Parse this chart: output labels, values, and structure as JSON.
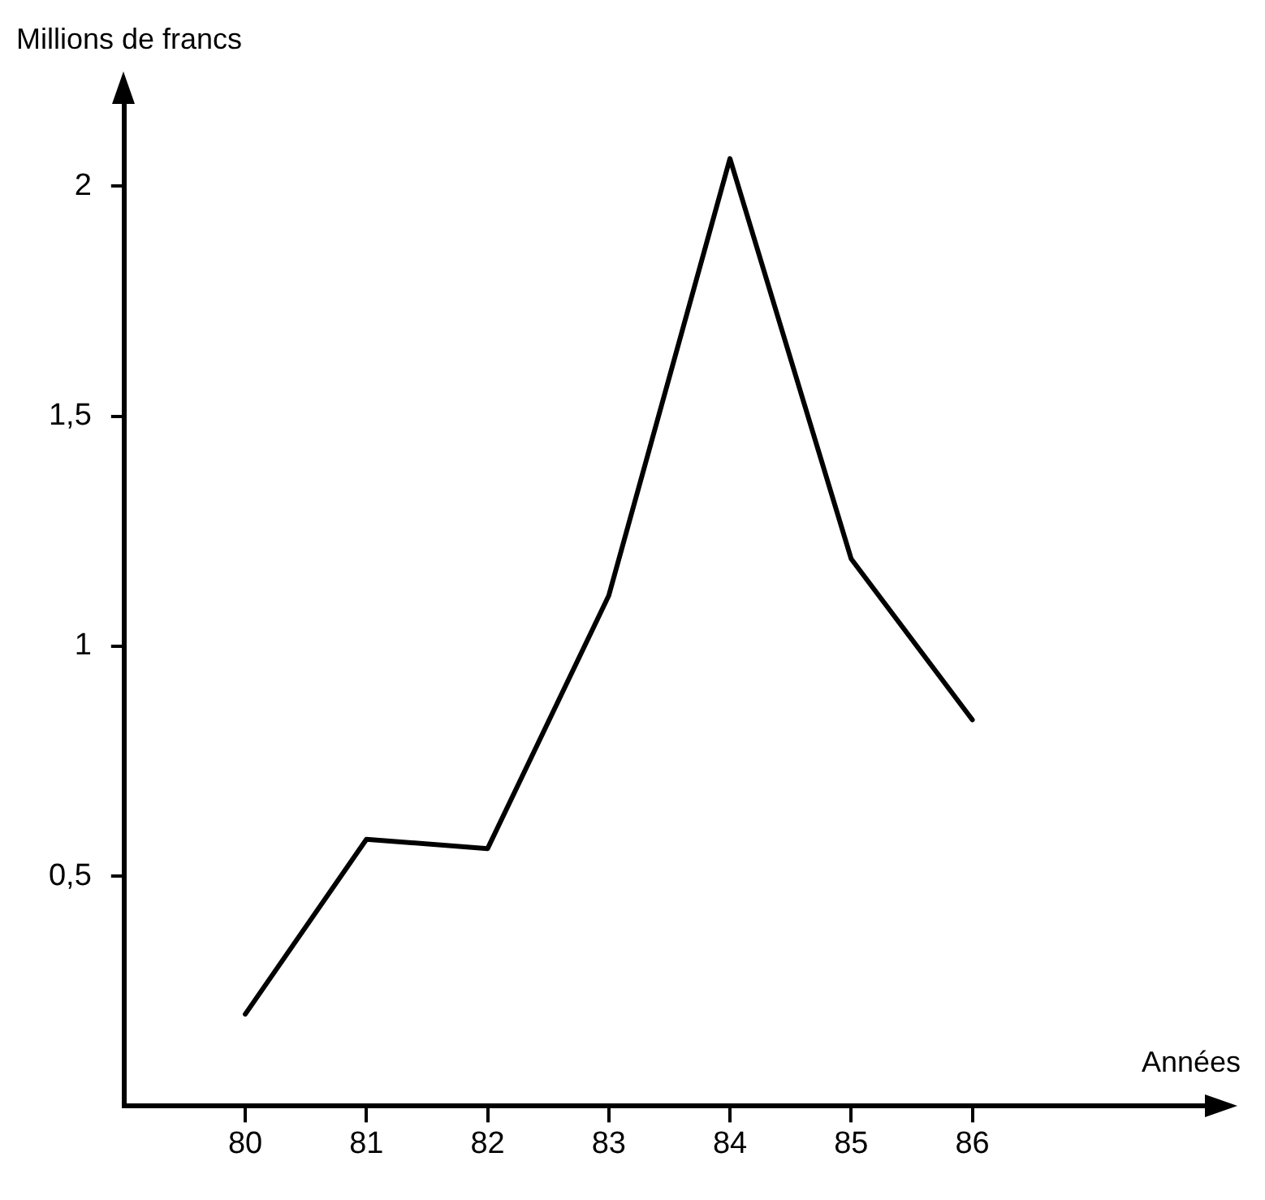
{
  "chart_data": {
    "type": "line",
    "xlabel": "Années",
    "ylabel": "Millions de francs",
    "x": [
      80,
      81,
      82,
      83,
      84,
      85,
      86
    ],
    "series": [
      {
        "color": "#000000",
        "values": [
          0.2,
          0.58,
          0.56,
          1.11,
          2.06,
          1.19,
          0.84
        ]
      }
    ],
    "xlim": [
      79,
      88
    ],
    "xticks": [
      80,
      81,
      82,
      83,
      84,
      85,
      86
    ],
    "ylim": [
      0,
      2.2
    ],
    "yticks": [
      {
        "value": 0.5,
        "label": "0,5"
      },
      1,
      {
        "value": 1.5,
        "label": "1,5"
      },
      2
    ],
    "grid": false,
    "legend": false,
    "marker": "none",
    "line_style": "solid"
  }
}
